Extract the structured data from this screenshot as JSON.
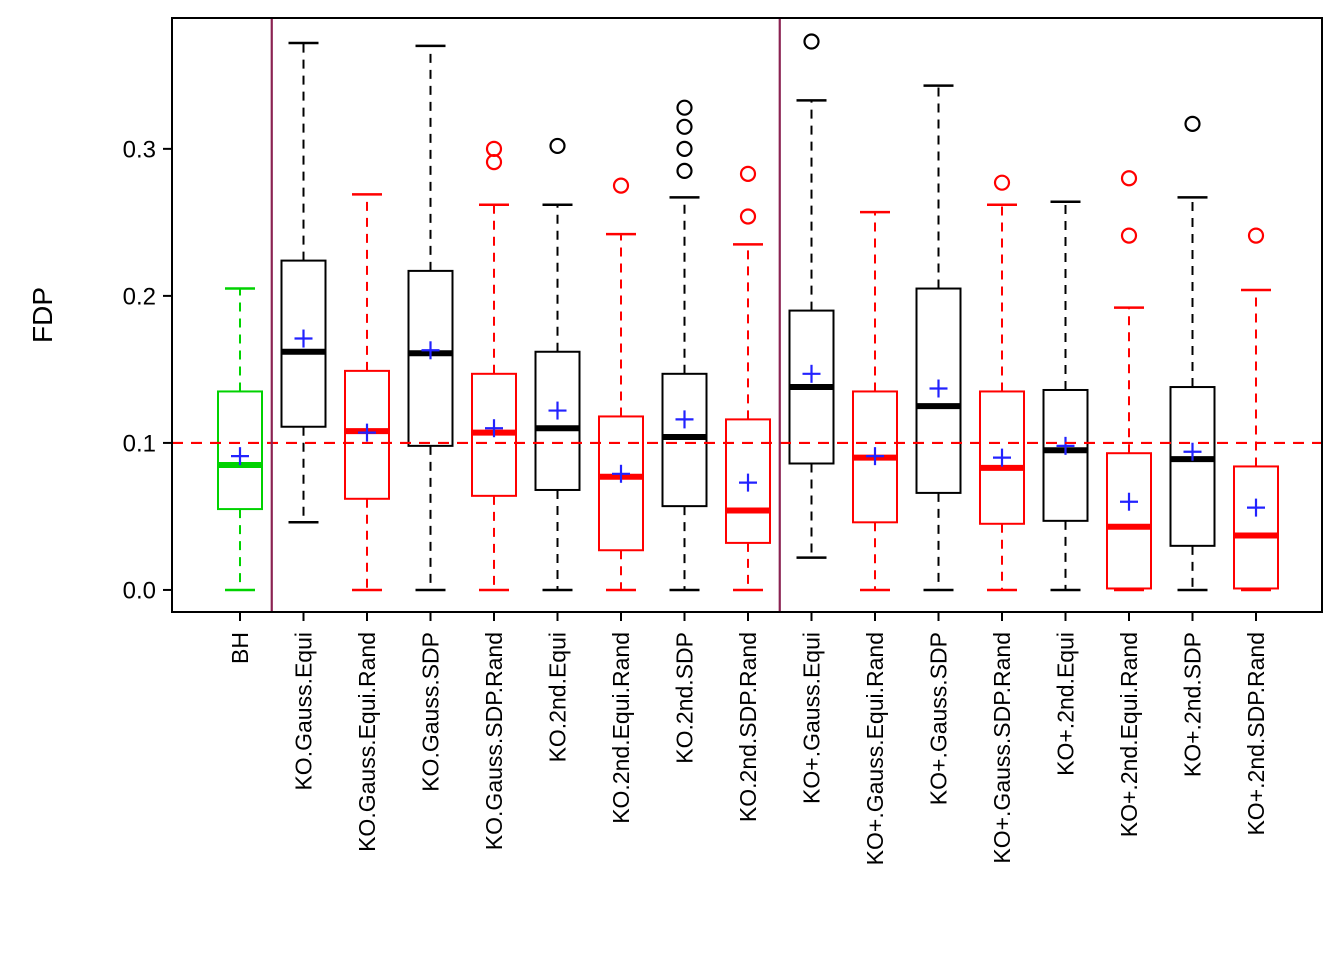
{
  "chart_data": {
    "type": "boxplot",
    "title": "",
    "xlabel": "",
    "ylabel": "FDP",
    "ylim": [
      -0.015,
      0.389
    ],
    "yticks": [
      0.0,
      0.1,
      0.2,
      0.3
    ],
    "ytick_labels": [
      "0.0",
      "0.1",
      "0.2",
      "0.3"
    ],
    "grid": false,
    "legend": "none",
    "reference_line": {
      "y": 0.1,
      "color": "#ff0000",
      "style": "dashed"
    },
    "separators": {
      "after_indices": [
        0,
        8
      ],
      "color": "#8b2252"
    },
    "mean_marker": {
      "symbol": "plus",
      "color": "#2222ff"
    },
    "groups": [
      {
        "label": "BH",
        "color": "#00d200",
        "whisker_low": 0.0,
        "q1": 0.055,
        "median": 0.085,
        "q3": 0.135,
        "whisker_high": 0.205,
        "mean": 0.091,
        "outliers": []
      },
      {
        "label": "KO.Gauss.Equi",
        "color": "#000000",
        "whisker_low": 0.046,
        "q1": 0.111,
        "median": 0.162,
        "q3": 0.224,
        "whisker_high": 0.372,
        "mean": 0.171,
        "outliers": []
      },
      {
        "label": "KO.Gauss.Equi.Rand",
        "color": "#ff0000",
        "whisker_low": 0.0,
        "q1": 0.062,
        "median": 0.108,
        "q3": 0.149,
        "whisker_high": 0.269,
        "mean": 0.107,
        "outliers": []
      },
      {
        "label": "KO.Gauss.SDP",
        "color": "#000000",
        "whisker_low": 0.0,
        "q1": 0.098,
        "median": 0.161,
        "q3": 0.217,
        "whisker_high": 0.37,
        "mean": 0.163,
        "outliers": []
      },
      {
        "label": "KO.Gauss.SDP.Rand",
        "color": "#ff0000",
        "whisker_low": 0.0,
        "q1": 0.064,
        "median": 0.107,
        "q3": 0.147,
        "whisker_high": 0.262,
        "mean": 0.11,
        "outliers": [
          0.291,
          0.3
        ]
      },
      {
        "label": "KO.2nd.Equi",
        "color": "#000000",
        "whisker_low": 0.0,
        "q1": 0.068,
        "median": 0.11,
        "q3": 0.162,
        "whisker_high": 0.262,
        "mean": 0.122,
        "outliers": [
          0.302
        ]
      },
      {
        "label": "KO.2nd.Equi.Rand",
        "color": "#ff0000",
        "whisker_low": 0.0,
        "q1": 0.027,
        "median": 0.077,
        "q3": 0.118,
        "whisker_high": 0.242,
        "mean": 0.079,
        "outliers": [
          0.275
        ]
      },
      {
        "label": "KO.2nd.SDP",
        "color": "#000000",
        "whisker_low": 0.0,
        "q1": 0.057,
        "median": 0.104,
        "q3": 0.147,
        "whisker_high": 0.267,
        "mean": 0.116,
        "outliers": [
          0.285,
          0.3,
          0.315,
          0.328
        ]
      },
      {
        "label": "KO.2nd.SDP.Rand",
        "color": "#ff0000",
        "whisker_low": 0.0,
        "q1": 0.032,
        "median": 0.054,
        "q3": 0.116,
        "whisker_high": 0.235,
        "mean": 0.073,
        "outliers": [
          0.254,
          0.283
        ]
      },
      {
        "label": "KO+.Gauss.Equi",
        "color": "#000000",
        "whisker_low": 0.022,
        "q1": 0.086,
        "median": 0.138,
        "q3": 0.19,
        "whisker_high": 0.333,
        "mean": 0.147,
        "outliers": [
          0.373
        ]
      },
      {
        "label": "KO+.Gauss.Equi.Rand",
        "color": "#ff0000",
        "whisker_low": 0.0,
        "q1": 0.046,
        "median": 0.09,
        "q3": 0.135,
        "whisker_high": 0.257,
        "mean": 0.091,
        "outliers": []
      },
      {
        "label": "KO+.Gauss.SDP",
        "color": "#000000",
        "whisker_low": 0.0,
        "q1": 0.066,
        "median": 0.125,
        "q3": 0.205,
        "whisker_high": 0.343,
        "mean": 0.137,
        "outliers": []
      },
      {
        "label": "KO+.Gauss.SDP.Rand",
        "color": "#ff0000",
        "whisker_low": 0.0,
        "q1": 0.045,
        "median": 0.083,
        "q3": 0.135,
        "whisker_high": 0.262,
        "mean": 0.09,
        "outliers": [
          0.277
        ]
      },
      {
        "label": "KO+.2nd.Equi",
        "color": "#000000",
        "whisker_low": 0.0,
        "q1": 0.047,
        "median": 0.095,
        "q3": 0.136,
        "whisker_high": 0.264,
        "mean": 0.098,
        "outliers": []
      },
      {
        "label": "KO+.2nd.Equi.Rand",
        "color": "#ff0000",
        "whisker_low": 0.0,
        "q1": 0.001,
        "median": 0.043,
        "q3": 0.093,
        "whisker_high": 0.192,
        "mean": 0.06,
        "outliers": [
          0.241,
          0.28
        ]
      },
      {
        "label": "KO+.2nd.SDP",
        "color": "#000000",
        "whisker_low": 0.0,
        "q1": 0.03,
        "median": 0.089,
        "q3": 0.138,
        "whisker_high": 0.267,
        "mean": 0.094,
        "outliers": [
          0.317
        ]
      },
      {
        "label": "KO+.2nd.SDP.Rand",
        "color": "#ff0000",
        "whisker_low": 0.0,
        "q1": 0.001,
        "median": 0.037,
        "q3": 0.084,
        "whisker_high": 0.204,
        "mean": 0.056,
        "outliers": [
          0.241
        ]
      }
    ]
  }
}
